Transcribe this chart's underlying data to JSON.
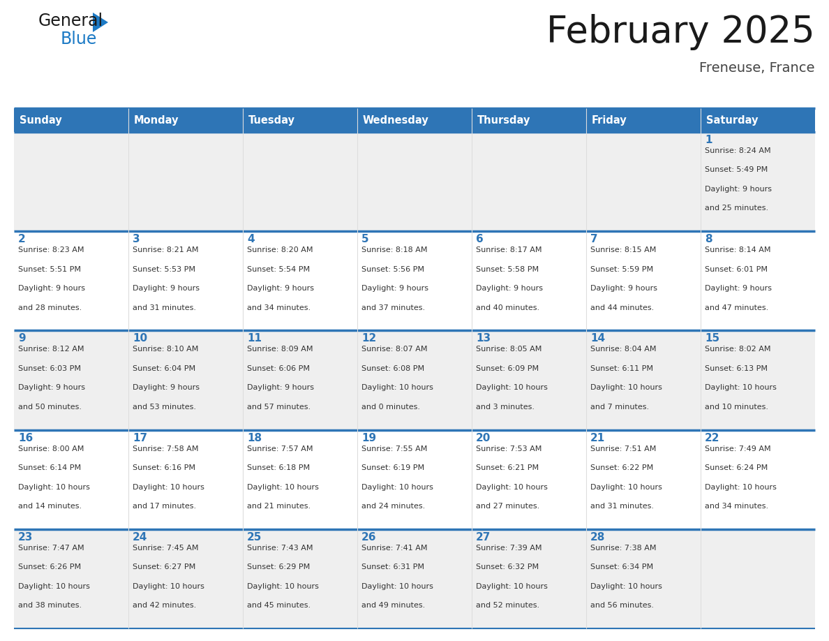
{
  "title": "February 2025",
  "subtitle": "Freneuse, France",
  "days_of_week": [
    "Sunday",
    "Monday",
    "Tuesday",
    "Wednesday",
    "Thursday",
    "Friday",
    "Saturday"
  ],
  "header_bg": "#2E75B6",
  "header_text_color": "#FFFFFF",
  "cell_bg_white": "#FFFFFF",
  "cell_bg_gray": "#EFEFEF",
  "title_color": "#1a1a1a",
  "subtitle_color": "#444444",
  "day_num_color": "#2E75B6",
  "info_text_color": "#333333",
  "divider_color": "#2E75B6",
  "border_color": "#CCCCCC",
  "logo_general_color": "#1a1a1a",
  "logo_blue_color": "#1C7AC5",
  "weeks": [
    [
      null,
      null,
      null,
      null,
      null,
      null,
      1
    ],
    [
      2,
      3,
      4,
      5,
      6,
      7,
      8
    ],
    [
      9,
      10,
      11,
      12,
      13,
      14,
      15
    ],
    [
      16,
      17,
      18,
      19,
      20,
      21,
      22
    ],
    [
      23,
      24,
      25,
      26,
      27,
      28,
      null
    ]
  ],
  "day_data": {
    "1": {
      "sunrise": "8:24 AM",
      "sunset": "5:49 PM",
      "daylight_hours": 9,
      "daylight_minutes": 25
    },
    "2": {
      "sunrise": "8:23 AM",
      "sunset": "5:51 PM",
      "daylight_hours": 9,
      "daylight_minutes": 28
    },
    "3": {
      "sunrise": "8:21 AM",
      "sunset": "5:53 PM",
      "daylight_hours": 9,
      "daylight_minutes": 31
    },
    "4": {
      "sunrise": "8:20 AM",
      "sunset": "5:54 PM",
      "daylight_hours": 9,
      "daylight_minutes": 34
    },
    "5": {
      "sunrise": "8:18 AM",
      "sunset": "5:56 PM",
      "daylight_hours": 9,
      "daylight_minutes": 37
    },
    "6": {
      "sunrise": "8:17 AM",
      "sunset": "5:58 PM",
      "daylight_hours": 9,
      "daylight_minutes": 40
    },
    "7": {
      "sunrise": "8:15 AM",
      "sunset": "5:59 PM",
      "daylight_hours": 9,
      "daylight_minutes": 44
    },
    "8": {
      "sunrise": "8:14 AM",
      "sunset": "6:01 PM",
      "daylight_hours": 9,
      "daylight_minutes": 47
    },
    "9": {
      "sunrise": "8:12 AM",
      "sunset": "6:03 PM",
      "daylight_hours": 9,
      "daylight_minutes": 50
    },
    "10": {
      "sunrise": "8:10 AM",
      "sunset": "6:04 PM",
      "daylight_hours": 9,
      "daylight_minutes": 53
    },
    "11": {
      "sunrise": "8:09 AM",
      "sunset": "6:06 PM",
      "daylight_hours": 9,
      "daylight_minutes": 57
    },
    "12": {
      "sunrise": "8:07 AM",
      "sunset": "6:08 PM",
      "daylight_hours": 10,
      "daylight_minutes": 0
    },
    "13": {
      "sunrise": "8:05 AM",
      "sunset": "6:09 PM",
      "daylight_hours": 10,
      "daylight_minutes": 3
    },
    "14": {
      "sunrise": "8:04 AM",
      "sunset": "6:11 PM",
      "daylight_hours": 10,
      "daylight_minutes": 7
    },
    "15": {
      "sunrise": "8:02 AM",
      "sunset": "6:13 PM",
      "daylight_hours": 10,
      "daylight_minutes": 10
    },
    "16": {
      "sunrise": "8:00 AM",
      "sunset": "6:14 PM",
      "daylight_hours": 10,
      "daylight_minutes": 14
    },
    "17": {
      "sunrise": "7:58 AM",
      "sunset": "6:16 PM",
      "daylight_hours": 10,
      "daylight_minutes": 17
    },
    "18": {
      "sunrise": "7:57 AM",
      "sunset": "6:18 PM",
      "daylight_hours": 10,
      "daylight_minutes": 21
    },
    "19": {
      "sunrise": "7:55 AM",
      "sunset": "6:19 PM",
      "daylight_hours": 10,
      "daylight_minutes": 24
    },
    "20": {
      "sunrise": "7:53 AM",
      "sunset": "6:21 PM",
      "daylight_hours": 10,
      "daylight_minutes": 27
    },
    "21": {
      "sunrise": "7:51 AM",
      "sunset": "6:22 PM",
      "daylight_hours": 10,
      "daylight_minutes": 31
    },
    "22": {
      "sunrise": "7:49 AM",
      "sunset": "6:24 PM",
      "daylight_hours": 10,
      "daylight_minutes": 34
    },
    "23": {
      "sunrise": "7:47 AM",
      "sunset": "6:26 PM",
      "daylight_hours": 10,
      "daylight_minutes": 38
    },
    "24": {
      "sunrise": "7:45 AM",
      "sunset": "6:27 PM",
      "daylight_hours": 10,
      "daylight_minutes": 42
    },
    "25": {
      "sunrise": "7:43 AM",
      "sunset": "6:29 PM",
      "daylight_hours": 10,
      "daylight_minutes": 45
    },
    "26": {
      "sunrise": "7:41 AM",
      "sunset": "6:31 PM",
      "daylight_hours": 10,
      "daylight_minutes": 49
    },
    "27": {
      "sunrise": "7:39 AM",
      "sunset": "6:32 PM",
      "daylight_hours": 10,
      "daylight_minutes": 52
    },
    "28": {
      "sunrise": "7:38 AM",
      "sunset": "6:34 PM",
      "daylight_hours": 10,
      "daylight_minutes": 56
    }
  }
}
